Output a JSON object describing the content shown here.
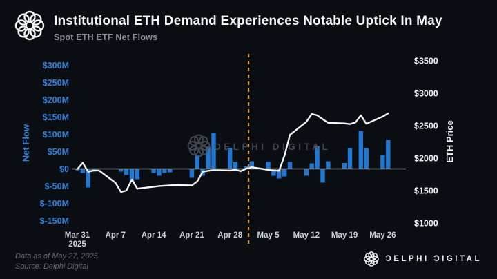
{
  "header": {
    "title": "Institutional ETH Demand Experiences Notable Uptick In May",
    "subtitle": "Spot ETH ETF Net Flows"
  },
  "footer": {
    "data_as_of": "Data as of May 27, 2025",
    "source": "Source: Delphi Digital",
    "brand_wordmark": "ƆELPHI ƆIGITAL"
  },
  "watermark": {
    "text": "ƆELPHI DIGITAL"
  },
  "colors": {
    "background": "#0a0d12",
    "bar_blue": "#1f78d1",
    "left_axis_blue": "#2e7fd6",
    "price_line_white": "#f7f8f9",
    "zero_line_gray": "#8b9299",
    "divider_orange": "#e2952f",
    "x_label_gray": "#ccd1d7",
    "watermark_gray": "#49515b"
  },
  "chart_data": {
    "type": "bar",
    "title": "Spot ETH ETF Net Flows",
    "legend_position": "none",
    "grid": false,
    "categories": [
      "Mar 31",
      "Apr 1",
      "Apr 2",
      "Apr 3",
      "Apr 4",
      "Apr 7",
      "Apr 8",
      "Apr 9",
      "Apr 10",
      "Apr 11",
      "Apr 14",
      "Apr 15",
      "Apr 16",
      "Apr 17",
      "Apr 18",
      "Apr 21",
      "Apr 22",
      "Apr 23",
      "Apr 24",
      "Apr 25",
      "Apr 28",
      "Apr 29",
      "Apr 30",
      "May 1",
      "May 2",
      "May 5",
      "May 6",
      "May 7",
      "May 8",
      "May 9",
      "May 12",
      "May 13",
      "May 14",
      "May 15",
      "May 16",
      "May 19",
      "May 20",
      "May 21",
      "May 22",
      "May 23",
      "May 26",
      "May 27"
    ],
    "calendar_offsets": [
      0,
      1,
      2,
      3,
      4,
      7,
      8,
      9,
      10,
      11,
      14,
      15,
      16,
      17,
      18,
      21,
      22,
      23,
      24,
      25,
      28,
      29,
      30,
      31,
      32,
      35,
      36,
      37,
      38,
      39,
      42,
      43,
      44,
      45,
      46,
      49,
      50,
      51,
      52,
      53,
      56,
      57
    ],
    "series": [
      {
        "name": "Net Flow",
        "type": "bar",
        "axis": "left",
        "unit": "$M",
        "color": "#1f78d1",
        "values": [
          -4,
          -12,
          -54,
          -8,
          0,
          0,
          -8,
          -18,
          -38,
          -30,
          -12,
          -20,
          -12,
          -10,
          0,
          -26,
          39,
          -20,
          64,
          104,
          60,
          19,
          0,
          9,
          22,
          21,
          -20,
          -28,
          -22,
          20,
          -20,
          16,
          65,
          -40,
          22,
          17,
          60,
          0,
          110,
          60,
          40,
          84
        ]
      },
      {
        "name": "ETH Price",
        "type": "line",
        "axis": "right",
        "unit": "$",
        "color": "#f7f8f9",
        "values": [
          1830,
          1930,
          1790,
          1810,
          1810,
          1620,
          1480,
          1500,
          1670,
          1530,
          1560,
          1570,
          1575,
          1580,
          1585,
          1580,
          1640,
          1790,
          1805,
          1815,
          1810,
          1820,
          1800,
          1840,
          1860,
          1820,
          1810,
          1805,
          2040,
          2360,
          2560,
          2680,
          2660,
          2600,
          2545,
          2535,
          2525,
          2550,
          2660,
          2530,
          2640,
          2690
        ]
      }
    ],
    "left_axis": {
      "label": "Net Flow",
      "range": [
        -150,
        300
      ],
      "tick_values": [
        300,
        250,
        200,
        150,
        100,
        50,
        0,
        -50,
        -100,
        -150
      ],
      "tick_labels": [
        "$300M",
        "$250M",
        "$200M",
        "$150M",
        "$100M",
        "$50M",
        "$0",
        "$-50M",
        "$-100M",
        "$-150M"
      ]
    },
    "right_axis": {
      "label": "ETH Price",
      "range": [
        1000,
        3500
      ],
      "tick_values": [
        3500,
        3000,
        2500,
        2000,
        1500,
        1000
      ],
      "tick_labels": [
        "$3500",
        "$3000",
        "$2500",
        "$2000",
        "$1500",
        "$1000"
      ]
    },
    "x_axis": {
      "ticks": [
        {
          "label": "Mar 31",
          "sublabel": "2025",
          "offset": 0
        },
        {
          "label": "Apr 7",
          "offset": 7
        },
        {
          "label": "Apr 14",
          "offset": 14
        },
        {
          "label": "Apr 21",
          "offset": 21
        },
        {
          "label": "Apr 28",
          "offset": 28
        },
        {
          "label": "May 5",
          "offset": 35
        },
        {
          "label": "May 12",
          "offset": 42
        },
        {
          "label": "May 19",
          "offset": 49
        },
        {
          "label": "May 26",
          "offset": 56
        }
      ]
    },
    "divider": {
      "calendar_offset": 31.4,
      "style": "dashed",
      "color": "#e2952f"
    }
  }
}
